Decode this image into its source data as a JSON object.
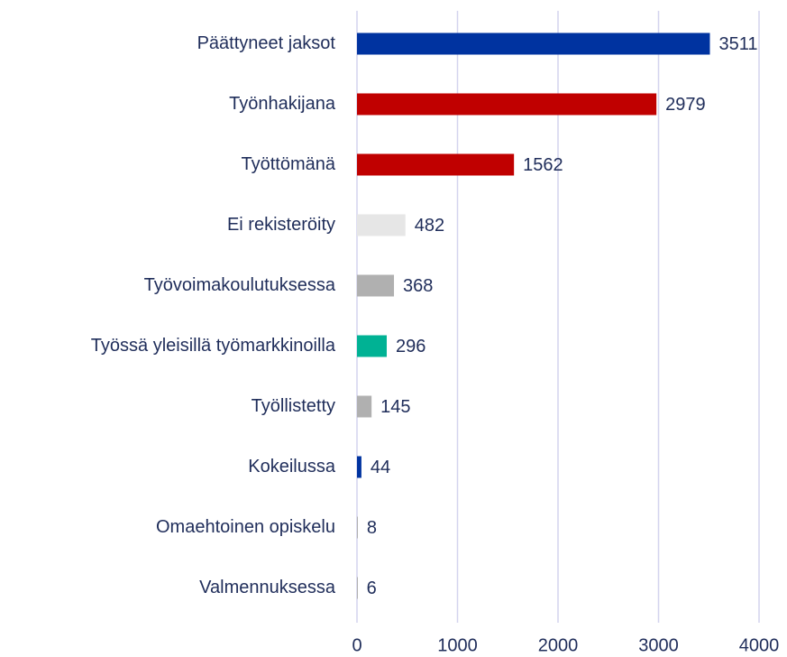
{
  "chart_data": {
    "type": "bar",
    "orientation": "horizontal",
    "categories": [
      "Päättyneet jaksot",
      "Työnhakijana",
      "Työttömänä",
      "Ei rekisteröity",
      "Työvoimakoulutuksessa",
      "Työssä yleisillä työmarkkinoilla",
      "Työllistetty",
      "Kokeilussa",
      "Omaehtoinen opiskelu",
      "Valmennuksessa"
    ],
    "values": [
      3511,
      2979,
      1562,
      482,
      368,
      296,
      145,
      44,
      8,
      6
    ],
    "colors": [
      "#0033a0",
      "#c00000",
      "#c00000",
      "#e6e6e6",
      "#b0b0b0",
      "#00b294",
      "#b0b0b0",
      "#0033a0",
      "#b0b0b0",
      "#b0b0b0"
    ],
    "xlim": [
      0,
      4000
    ],
    "xticks": [
      0,
      1000,
      2000,
      3000,
      4000
    ],
    "grid": true
  }
}
